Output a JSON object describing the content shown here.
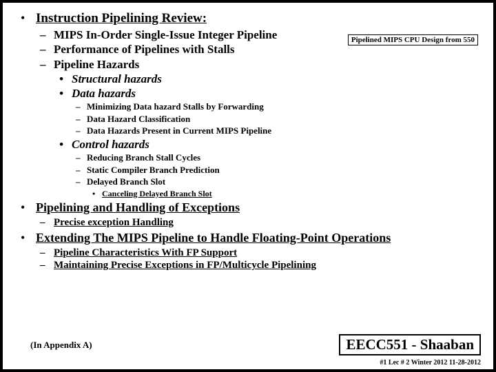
{
  "boxNote": "Pipelined MIPS CPU Design from 550",
  "section1": {
    "title": "Instruction Pipelining Review:",
    "items": [
      "MIPS In-Order Single-Issue Integer Pipeline",
      "Performance of Pipelines with Stalls",
      "Pipeline Hazards"
    ],
    "hazards": {
      "structural": "Structural hazards",
      "data": "Data hazards",
      "dataSub": [
        "Minimizing Data hazard Stalls by Forwarding",
        "Data Hazard Classification",
        "Data Hazards Present in Current MIPS Pipeline"
      ],
      "control": "Control hazards",
      "controlSub": [
        "Reducing Branch Stall Cycles",
        "Static Compiler Branch Prediction",
        "Delayed Branch Slot"
      ],
      "controlSubSub": "Canceling Delayed Branch Slot"
    }
  },
  "section2": {
    "title": "Pipelining and Handling of Exceptions",
    "items": [
      "Precise exception Handling"
    ]
  },
  "section3": {
    "title": "Extending The MIPS Pipeline to Handle Floating-Point  Operations",
    "items": [
      "Pipeline Characteristics With FP Support",
      "Maintaining Precise Exceptions in FP/Multicycle Pipelining"
    ]
  },
  "appendixNote": "(In Appendix A)",
  "footerBox": "EECC551 - Shaaban",
  "footerSmall": "#1   Lec # 2   Winter 2012    11-28-2012"
}
